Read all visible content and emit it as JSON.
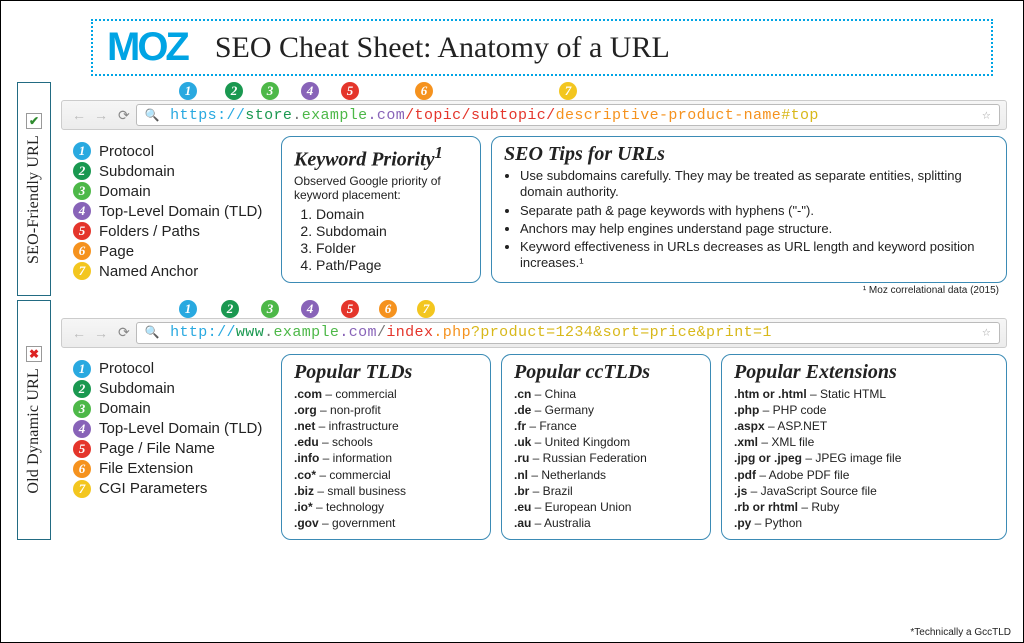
{
  "brand": "MOZ",
  "title": "SEO Cheat Sheet: Anatomy of a URL",
  "colors": {
    "1": "#29a9e0",
    "2": "#1a9850",
    "3": "#4db848",
    "4": "#8863b8",
    "5": "#e4352b",
    "6": "#f5921e",
    "7": "#f3c61f"
  },
  "section_a": {
    "side_label": "SEO-Friendly URL",
    "status_mark": "✔",
    "url_parts": [
      {
        "text": "https://",
        "color": "#29a9e0"
      },
      {
        "text": "store",
        "color": "#1a9850"
      },
      {
        "text": ".",
        "color": "#777"
      },
      {
        "text": "example",
        "color": "#4db848"
      },
      {
        "text": ".com",
        "color": "#8863b8"
      },
      {
        "text": "/topic/subtopic/",
        "color": "#e4352b"
      },
      {
        "text": "descriptive-product-name",
        "color": "#f5921e"
      },
      {
        "text": "#top",
        "color": "#d8b81a"
      }
    ],
    "marker_positions": [
      0,
      46,
      82,
      122,
      162,
      236,
      380,
      544
    ],
    "legend": [
      {
        "n": "1",
        "label": "Protocol"
      },
      {
        "n": "2",
        "label": "Subdomain"
      },
      {
        "n": "3",
        "label": "Domain"
      },
      {
        "n": "4",
        "label": "Top-Level Domain (TLD)"
      },
      {
        "n": "5",
        "label": "Folders / Paths"
      },
      {
        "n": "6",
        "label": "Page"
      },
      {
        "n": "7",
        "label": "Named Anchor"
      }
    ],
    "keyword_box": {
      "title": "Keyword Priority",
      "sup": "1",
      "sub": "Observed Google priority of keyword placement:",
      "items": [
        "Domain",
        "Subdomain",
        "Folder",
        "Path/Page"
      ]
    },
    "tips_box": {
      "title": "SEO Tips for URLs",
      "items": [
        "Use subdomains carefully. They may be treated as separate entities, splitting domain authority.",
        "Separate path & page keywords with hyphens (\"-\").",
        "Anchors may help engines understand page structure.",
        "Keyword effectiveness in URLs decreases as URL length and keyword position increases.¹"
      ]
    },
    "footnote": "¹ Moz correlational data (2015)"
  },
  "section_b": {
    "side_label": "Old Dynamic URL",
    "status_mark": "✖",
    "url_parts": [
      {
        "text": "http://",
        "color": "#29a9e0"
      },
      {
        "text": "www",
        "color": "#1a9850"
      },
      {
        "text": ".",
        "color": "#777"
      },
      {
        "text": "example",
        "color": "#4db848"
      },
      {
        "text": ".com",
        "color": "#8863b8"
      },
      {
        "text": "/",
        "color": "#777"
      },
      {
        "text": "index",
        "color": "#e4352b"
      },
      {
        "text": ".php",
        "color": "#f5921e"
      },
      {
        "text": "?product=1234&sort=price&print=1",
        "color": "#d8b81a"
      }
    ],
    "marker_positions": [
      0,
      42,
      82,
      122,
      162,
      200,
      238,
      392
    ],
    "legend": [
      {
        "n": "1",
        "label": "Protocol"
      },
      {
        "n": "2",
        "label": "Subdomain"
      },
      {
        "n": "3",
        "label": "Domain"
      },
      {
        "n": "4",
        "label": "Top-Level Domain (TLD)"
      },
      {
        "n": "5",
        "label": "Page / File Name"
      },
      {
        "n": "6",
        "label": "File Extension"
      },
      {
        "n": "7",
        "label": "CGI Parameters"
      }
    ],
    "tld_box": {
      "title": "Popular TLDs",
      "items": [
        {
          "k": ".com",
          "v": "commercial"
        },
        {
          "k": ".org",
          "v": "non-profit"
        },
        {
          "k": ".net",
          "v": "infrastructure"
        },
        {
          "k": ".edu",
          "v": "schools"
        },
        {
          "k": ".info",
          "v": "information"
        },
        {
          "k": ".co*",
          "v": "commercial"
        },
        {
          "k": ".biz",
          "v": "small business"
        },
        {
          "k": ".io*",
          "v": "technology"
        },
        {
          "k": ".gov",
          "v": "government"
        }
      ]
    },
    "cctld_box": {
      "title": "Popular ccTLDs",
      "items": [
        {
          "k": ".cn",
          "v": "China"
        },
        {
          "k": ".de",
          "v": "Germany"
        },
        {
          "k": ".fr",
          "v": "France"
        },
        {
          "k": ".uk",
          "v": "United Kingdom"
        },
        {
          "k": ".ru",
          "v": "Russian Federation"
        },
        {
          "k": ".nl",
          "v": "Netherlands"
        },
        {
          "k": ".br",
          "v": "Brazil"
        },
        {
          "k": ".eu",
          "v": "European Union"
        },
        {
          "k": ".au",
          "v": "Australia"
        }
      ]
    },
    "ext_box": {
      "title": "Popular Extensions",
      "items": [
        {
          "k": ".htm or .html",
          "v": "Static HTML"
        },
        {
          "k": ".php",
          "v": "PHP code"
        },
        {
          "k": ".aspx",
          "v": "ASP.NET"
        },
        {
          "k": ".xml",
          "v": "XML file"
        },
        {
          "k": ".jpg or .jpeg",
          "v": "JPEG image file"
        },
        {
          "k": ".pdf",
          "v": "Adobe PDF file"
        },
        {
          "k": ".js",
          "v": "JavaScript Source file"
        },
        {
          "k": ".rb or rhtml",
          "v": "Ruby"
        },
        {
          "k": ".py",
          "v": "Python"
        }
      ]
    }
  },
  "tech_note": "*Technically a GccTLD"
}
